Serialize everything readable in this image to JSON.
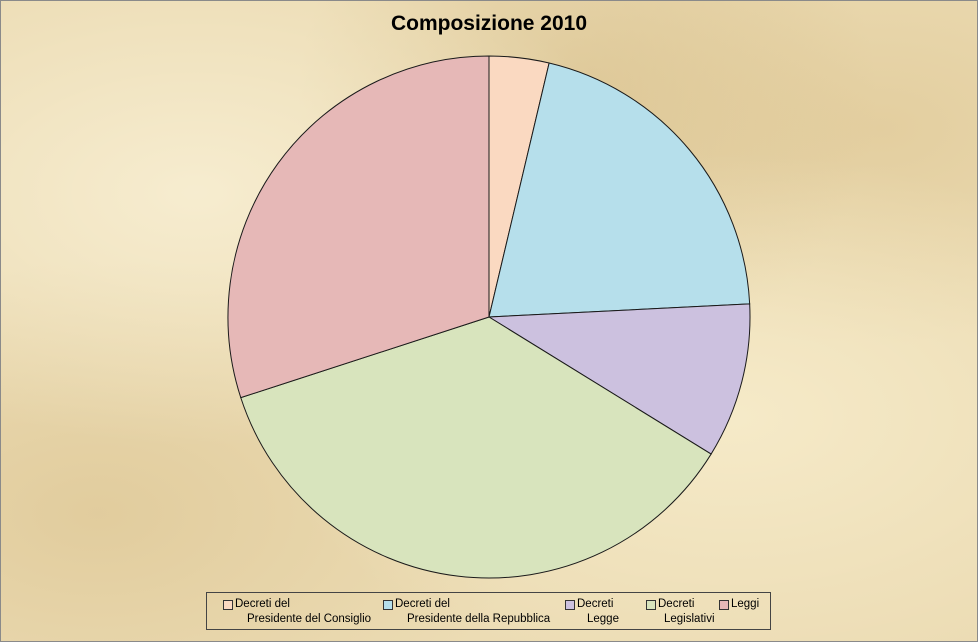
{
  "chart_data": {
    "type": "pie",
    "title": "Composizione 2010",
    "legend_position": "bottom",
    "slices": [
      {
        "label": "Decreti del Presidente del Consiglio",
        "legend_lines": [
          "Decreti del",
          "Presidente del Consiglio"
        ],
        "value": 3.7,
        "color": "#fad9c1"
      },
      {
        "label": "Decreti del Presidente della Repubblica",
        "legend_lines": [
          "Decreti del",
          "Presidente della Repubblica"
        ],
        "value": 20.5,
        "color": "#b6dfeb"
      },
      {
        "label": "Decreti Legge",
        "legend_lines": [
          "Decreti",
          "Legge"
        ],
        "value": 9.6,
        "color": "#ccc1df"
      },
      {
        "label": "Decreti Legislativi",
        "legend_lines": [
          "Decreti",
          "Legislativi"
        ],
        "value": 36.2,
        "color": "#d8e4bd"
      },
      {
        "label": "Leggi",
        "legend_lines": [
          "Leggi",
          ""
        ],
        "value": 30.0,
        "color": "#e6b8b7"
      }
    ]
  }
}
